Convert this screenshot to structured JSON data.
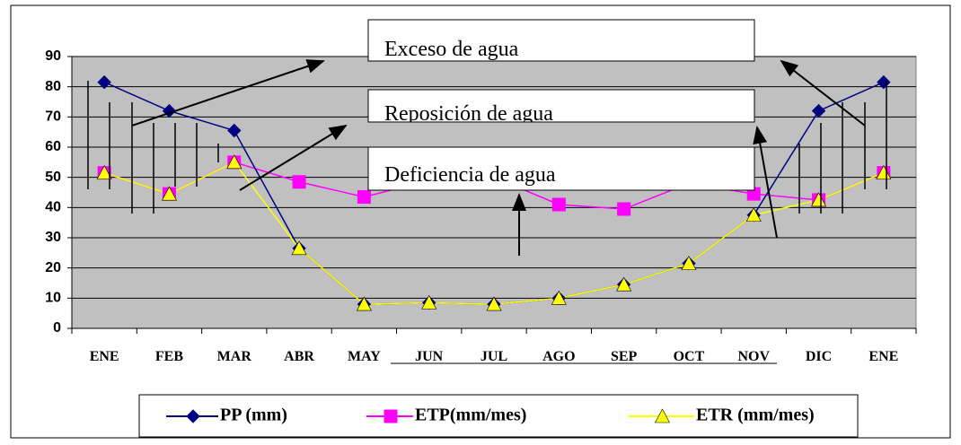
{
  "chart_data": {
    "type": "line",
    "categories": [
      "ENE",
      "FEB",
      "MAR",
      "ABR",
      "MAY",
      "JUN",
      "JUL",
      "AGO",
      "SEP",
      "OCT",
      "NOV",
      "DIC",
      "ENE"
    ],
    "series": [
      {
        "name": "PP (mm)",
        "color": "#000080",
        "marker": "diamond",
        "values": [
          81.5,
          72,
          65.5,
          26.5,
          8,
          8.5,
          8,
          10,
          14.5,
          21.5,
          37.5,
          72,
          81.5
        ]
      },
      {
        "name": "ETP(mm/mes)",
        "color": "#ff00ff",
        "marker": "square",
        "values": [
          51.5,
          44.5,
          55,
          48.5,
          43.5,
          49,
          50,
          41,
          39.5,
          48,
          44.5,
          42.5,
          51.5
        ]
      },
      {
        "name": "ETR (mm/mes)",
        "color": "#ffff00",
        "marker": "triangle",
        "values": [
          51.5,
          44.5,
          55,
          26.5,
          8,
          8.5,
          8,
          10,
          14.5,
          21.5,
          37.5,
          42.5,
          51.5
        ]
      }
    ],
    "ylim": [
      0,
      90
    ],
    "yticks": [
      0,
      10,
      20,
      30,
      40,
      50,
      60,
      70,
      80,
      90
    ],
    "grid": true,
    "annotations": [
      "Exceso de agua",
      "Reposición de agua",
      "Deficiencia de agua"
    ],
    "legend": "bottom"
  }
}
